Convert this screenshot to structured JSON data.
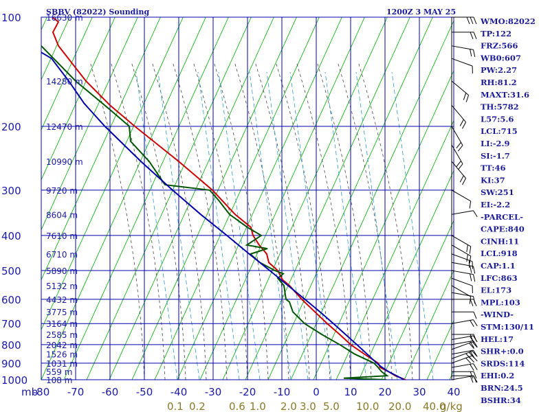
{
  "header": {
    "station": "SBBV (82022) Sounding",
    "time": "1200Z  3 MAY 25"
  },
  "chart_data": {
    "type": "skew-t",
    "pressure_axis": {
      "unit_label": "mb",
      "ticks": [
        100,
        200,
        300,
        400,
        500,
        600,
        700,
        800,
        900,
        1000
      ],
      "range": [
        100,
        1000
      ],
      "scale": "log"
    },
    "temperature_axis": {
      "ticks": [
        -80,
        -70,
        -60,
        -50,
        -40,
        -30,
        -20,
        -10,
        0,
        10,
        20,
        30,
        40
      ],
      "range": [
        -80,
        40
      ],
      "skew": 0.0
    },
    "height_labels": [
      {
        "p": 100,
        "label": "16630 m"
      },
      {
        "p": 150,
        "label": "14280 m"
      },
      {
        "p": 200,
        "label": "12470 m"
      },
      {
        "p": 250,
        "label": "10990 m"
      },
      {
        "p": 300,
        "label": "9720 m"
      },
      {
        "p": 350,
        "label": "8604 m"
      },
      {
        "p": 400,
        "label": "7610 m"
      },
      {
        "p": 450,
        "label": "6710 m"
      },
      {
        "p": 500,
        "label": "5890 m"
      },
      {
        "p": 550,
        "label": "5132 m"
      },
      {
        "p": 600,
        "label": "4432 m"
      },
      {
        "p": 650,
        "label": "3775 m"
      },
      {
        "p": 700,
        "label": "3164 m"
      },
      {
        "p": 750,
        "label": "2585 m"
      },
      {
        "p": 800,
        "label": "2042 m"
      },
      {
        "p": 850,
        "label": "1526 m"
      },
      {
        "p": 900,
        "label": "1031 m"
      },
      {
        "p": 950,
        "label": "559 m"
      },
      {
        "p": 1000,
        "label": "108 m"
      }
    ],
    "mixing_ratio_labels": [
      "0.1",
      "0.2",
      "0.6",
      "1.0",
      "2.0",
      "3.0",
      "5.0",
      "10.0",
      "20.0",
      "40.0",
      "g/kg"
    ],
    "series": [
      {
        "kind": "temperature",
        "color": "#cc0000",
        "points": [
          [
            1000,
            26
          ],
          [
            975,
            23
          ],
          [
            950,
            21
          ],
          [
            925,
            18.6
          ],
          [
            900,
            18
          ],
          [
            850,
            14
          ],
          [
            800,
            10
          ],
          [
            750,
            6.8
          ],
          [
            700,
            3.2
          ],
          [
            650,
            -0.4
          ],
          [
            600,
            -4.2
          ],
          [
            550,
            -7.8
          ],
          [
            530,
            -9.8
          ],
          [
            500,
            -11.2
          ],
          [
            475,
            -13.8
          ],
          [
            450,
            -14.4
          ],
          [
            425,
            -16.6
          ],
          [
            400,
            -18.4
          ],
          [
            380,
            -19
          ],
          [
            350,
            -23.6
          ],
          [
            300,
            -30.2
          ],
          [
            250,
            -40
          ],
          [
            200,
            -52.8
          ],
          [
            175,
            -60
          ],
          [
            150,
            -67
          ],
          [
            120,
            -75
          ],
          [
            110,
            -76.6
          ],
          [
            103,
            -75
          ],
          [
            100,
            -76.8
          ]
        ]
      },
      {
        "kind": "dewpoint",
        "color": "#005500",
        "points": [
          [
            1000,
            20.4
          ],
          [
            990,
            8
          ],
          [
            975,
            20.6
          ],
          [
            950,
            19
          ],
          [
            925,
            18
          ],
          [
            900,
            16.8
          ],
          [
            850,
            11.2
          ],
          [
            800,
            6.8
          ],
          [
            750,
            1.6
          ],
          [
            700,
            -3.4
          ],
          [
            650,
            -6.8
          ],
          [
            610,
            -7.8
          ],
          [
            600,
            -8.8
          ],
          [
            550,
            -9.4
          ],
          [
            525,
            -11.2
          ],
          [
            510,
            -9.6
          ],
          [
            500,
            -12
          ],
          [
            475,
            -16.4
          ],
          [
            450,
            -19.2
          ],
          [
            435,
            -14.2
          ],
          [
            425,
            -20.2
          ],
          [
            400,
            -16
          ],
          [
            380,
            -20
          ],
          [
            350,
            -25.2
          ],
          [
            320,
            -28.4
          ],
          [
            300,
            -31
          ],
          [
            290,
            -44
          ],
          [
            250,
            -48.6
          ],
          [
            220,
            -54
          ],
          [
            200,
            -54.4
          ],
          [
            180,
            -60
          ],
          [
            150,
            -70
          ],
          [
            120,
            -80
          ]
        ]
      },
      {
        "kind": "parcel",
        "color": "#0000aa",
        "points": [
          [
            1000,
            25.6
          ],
          [
            950,
            21
          ],
          [
            918,
            18.7
          ],
          [
            900,
            17.6
          ],
          [
            850,
            14.8
          ],
          [
            800,
            11.8
          ],
          [
            750,
            8.5
          ],
          [
            700,
            5
          ],
          [
            650,
            1.1
          ],
          [
            600,
            -3.3
          ],
          [
            550,
            -8.2
          ],
          [
            500,
            -13.5
          ],
          [
            450,
            -19.5
          ],
          [
            400,
            -26
          ],
          [
            350,
            -33.6
          ],
          [
            300,
            -41.8
          ],
          [
            250,
            -51
          ],
          [
            200,
            -61.5
          ],
          [
            173,
            -67.5
          ],
          [
            150,
            -72
          ],
          [
            130,
            -77
          ],
          [
            125,
            -80
          ]
        ]
      }
    ]
  },
  "indices": [
    "WMO:82022",
    "TP:122",
    "FRZ:566",
    "WB0:607",
    "PW:2.27",
    "RH:81.2",
    "MAXT:31.6",
    "TH:5782",
    "L57:5.6",
    "LCL:715",
    "LI:-2.9",
    "SI:-1.7",
    "TT:46",
    "KI:37",
    "SW:251",
    "EI:-2.2",
    "-PARCEL-",
    "CAPE:840",
    "CINH:11",
    "LCL:918",
    "CAP:1.1",
    "LFC:863",
    "EL:173",
    "MPL:103",
    "-WIND-",
    "STM:130/11",
    "HEL:17",
    "SHR+:0.0",
    "SRDS:114",
    "EHI:0.2",
    "BRN:24.5",
    "BSHR:34"
  ],
  "wind_barbs": [
    {
      "p": 1000,
      "dir": 80,
      "spd": 10
    },
    {
      "p": 975,
      "dir": 90,
      "spd": 15
    },
    {
      "p": 950,
      "dir": 90,
      "spd": 15
    },
    {
      "p": 925,
      "dir": 80,
      "spd": 20
    },
    {
      "p": 900,
      "dir": 70,
      "spd": 25
    },
    {
      "p": 875,
      "dir": 70,
      "spd": 25
    },
    {
      "p": 850,
      "dir": 80,
      "spd": 20
    },
    {
      "p": 825,
      "dir": 70,
      "spd": 20
    },
    {
      "p": 800,
      "dir": 80,
      "spd": 20
    },
    {
      "p": 775,
      "dir": 80,
      "spd": 15
    },
    {
      "p": 750,
      "dir": 90,
      "spd": 15
    },
    {
      "p": 700,
      "dir": 80,
      "spd": 15
    },
    {
      "p": 650,
      "dir": 90,
      "spd": 10
    },
    {
      "p": 600,
      "dir": 90,
      "spd": 15
    },
    {
      "p": 575,
      "dir": 100,
      "spd": 10
    },
    {
      "p": 550,
      "dir": 120,
      "spd": 10
    },
    {
      "p": 525,
      "dir": 110,
      "spd": 10
    },
    {
      "p": 500,
      "dir": 100,
      "spd": 15
    },
    {
      "p": 475,
      "dir": 100,
      "spd": 15
    },
    {
      "p": 450,
      "dir": 110,
      "spd": 20
    },
    {
      "p": 425,
      "dir": 120,
      "spd": 15
    },
    {
      "p": 400,
      "dir": 120,
      "spd": 15
    },
    {
      "p": 350,
      "dir": 80,
      "spd": 10
    },
    {
      "p": 300,
      "dir": 120,
      "spd": 10
    },
    {
      "p": 250,
      "dir": 140,
      "spd": 20
    },
    {
      "p": 225,
      "dir": 150,
      "spd": 20
    },
    {
      "p": 200,
      "dir": 150,
      "spd": 20
    },
    {
      "p": 175,
      "dir": 140,
      "spd": 15
    },
    {
      "p": 150,
      "dir": 130,
      "spd": 15
    },
    {
      "p": 130,
      "dir": 110,
      "spd": 10
    },
    {
      "p": 120,
      "dir": 100,
      "spd": 15
    },
    {
      "p": 110,
      "dir": 90,
      "spd": 20
    },
    {
      "p": 100,
      "dir": 90,
      "spd": 30
    }
  ],
  "colors": {
    "isobar": "#0000aa",
    "isotherm": "#0000aa",
    "dry_adiabat": "#00aa00",
    "moist_adiabat": "#444444",
    "mixing_ratio": "#3399cc",
    "text": "#1a1a99"
  }
}
